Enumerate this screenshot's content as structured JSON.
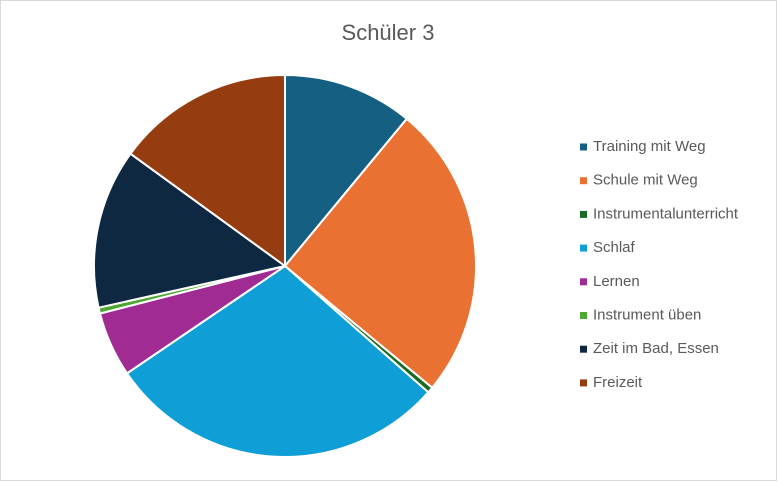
{
  "chart_data": {
    "type": "pie",
    "title": "Schüler 3",
    "categories": [
      "Training mit Weg",
      "Schule mit Weg",
      "Instrumentalunterricht",
      "Schlaf",
      "Lernen",
      "Instrument üben",
      "Zeit im Bad, Essen",
      "Freizeit"
    ],
    "values": [
      11,
      25,
      0.5,
      29,
      5.5,
      0.5,
      13.5,
      15
    ],
    "colors": [
      "#156082",
      "#e97132",
      "#196b24",
      "#0f9ed5",
      "#a02b93",
      "#4ea72e",
      "#0e2841",
      "#953d10"
    ],
    "legend": "right"
  }
}
